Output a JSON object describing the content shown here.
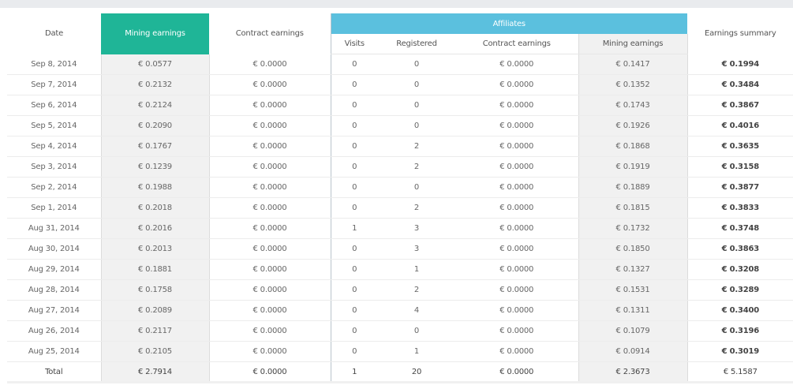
{
  "headers": {
    "date": "Date",
    "mining_earnings": "Mining earnings",
    "contract_earnings": "Contract earnings",
    "affiliates": "Affiliates",
    "earnings_summary": "Earnings summary",
    "aff_visits": "Visits",
    "aff_registered": "Registered",
    "aff_contract_earnings": "Contract earnings",
    "aff_mining_earnings": "Mining earnings"
  },
  "rows": [
    {
      "date": "Sep 8, 2014",
      "mining": "€ 0.0577",
      "contract": "€ 0.0000",
      "visits": "0",
      "registered": "0",
      "aff_contract": "€ 0.0000",
      "aff_mining": "€ 0.1417",
      "summary": "€ 0.1994"
    },
    {
      "date": "Sep 7, 2014",
      "mining": "€ 0.2132",
      "contract": "€ 0.0000",
      "visits": "0",
      "registered": "0",
      "aff_contract": "€ 0.0000",
      "aff_mining": "€ 0.1352",
      "summary": "€ 0.3484"
    },
    {
      "date": "Sep 6, 2014",
      "mining": "€ 0.2124",
      "contract": "€ 0.0000",
      "visits": "0",
      "registered": "0",
      "aff_contract": "€ 0.0000",
      "aff_mining": "€ 0.1743",
      "summary": "€ 0.3867"
    },
    {
      "date": "Sep 5, 2014",
      "mining": "€ 0.2090",
      "contract": "€ 0.0000",
      "visits": "0",
      "registered": "0",
      "aff_contract": "€ 0.0000",
      "aff_mining": "€ 0.1926",
      "summary": "€ 0.4016"
    },
    {
      "date": "Sep 4, 2014",
      "mining": "€ 0.1767",
      "contract": "€ 0.0000",
      "visits": "0",
      "registered": "2",
      "aff_contract": "€ 0.0000",
      "aff_mining": "€ 0.1868",
      "summary": "€ 0.3635"
    },
    {
      "date": "Sep 3, 2014",
      "mining": "€ 0.1239",
      "contract": "€ 0.0000",
      "visits": "0",
      "registered": "2",
      "aff_contract": "€ 0.0000",
      "aff_mining": "€ 0.1919",
      "summary": "€ 0.3158"
    },
    {
      "date": "Sep 2, 2014",
      "mining": "€ 0.1988",
      "contract": "€ 0.0000",
      "visits": "0",
      "registered": "0",
      "aff_contract": "€ 0.0000",
      "aff_mining": "€ 0.1889",
      "summary": "€ 0.3877"
    },
    {
      "date": "Sep 1, 2014",
      "mining": "€ 0.2018",
      "contract": "€ 0.0000",
      "visits": "0",
      "registered": "2",
      "aff_contract": "€ 0.0000",
      "aff_mining": "€ 0.1815",
      "summary": "€ 0.3833"
    },
    {
      "date": "Aug 31, 2014",
      "mining": "€ 0.2016",
      "contract": "€ 0.0000",
      "visits": "1",
      "registered": "3",
      "aff_contract": "€ 0.0000",
      "aff_mining": "€ 0.1732",
      "summary": "€ 0.3748"
    },
    {
      "date": "Aug 30, 2014",
      "mining": "€ 0.2013",
      "contract": "€ 0.0000",
      "visits": "0",
      "registered": "3",
      "aff_contract": "€ 0.0000",
      "aff_mining": "€ 0.1850",
      "summary": "€ 0.3863"
    },
    {
      "date": "Aug 29, 2014",
      "mining": "€ 0.1881",
      "contract": "€ 0.0000",
      "visits": "0",
      "registered": "1",
      "aff_contract": "€ 0.0000",
      "aff_mining": "€ 0.1327",
      "summary": "€ 0.3208"
    },
    {
      "date": "Aug 28, 2014",
      "mining": "€ 0.1758",
      "contract": "€ 0.0000",
      "visits": "0",
      "registered": "2",
      "aff_contract": "€ 0.0000",
      "aff_mining": "€ 0.1531",
      "summary": "€ 0.3289"
    },
    {
      "date": "Aug 27, 2014",
      "mining": "€ 0.2089",
      "contract": "€ 0.0000",
      "visits": "0",
      "registered": "4",
      "aff_contract": "€ 0.0000",
      "aff_mining": "€ 0.1311",
      "summary": "€ 0.3400"
    },
    {
      "date": "Aug 26, 2014",
      "mining": "€ 0.2117",
      "contract": "€ 0.0000",
      "visits": "0",
      "registered": "0",
      "aff_contract": "€ 0.0000",
      "aff_mining": "€ 0.1079",
      "summary": "€ 0.3196"
    },
    {
      "date": "Aug 25, 2014",
      "mining": "€ 0.2105",
      "contract": "€ 0.0000",
      "visits": "0",
      "registered": "1",
      "aff_contract": "€ 0.0000",
      "aff_mining": "€ 0.0914",
      "summary": "€ 0.3019"
    }
  ],
  "total": {
    "date": "Total",
    "mining": "€ 2.7914",
    "contract": "€ 0.0000",
    "visits": "1",
    "registered": "20",
    "aff_contract": "€ 0.0000",
    "aff_mining": "€ 2.3673",
    "summary": "€ 5.1587"
  },
  "colors": {
    "page_bg": "#e9ebee",
    "mining_header": "#1fb597",
    "affiliates_header": "#5bc0de",
    "highlight_column": "#f1f1f1"
  }
}
